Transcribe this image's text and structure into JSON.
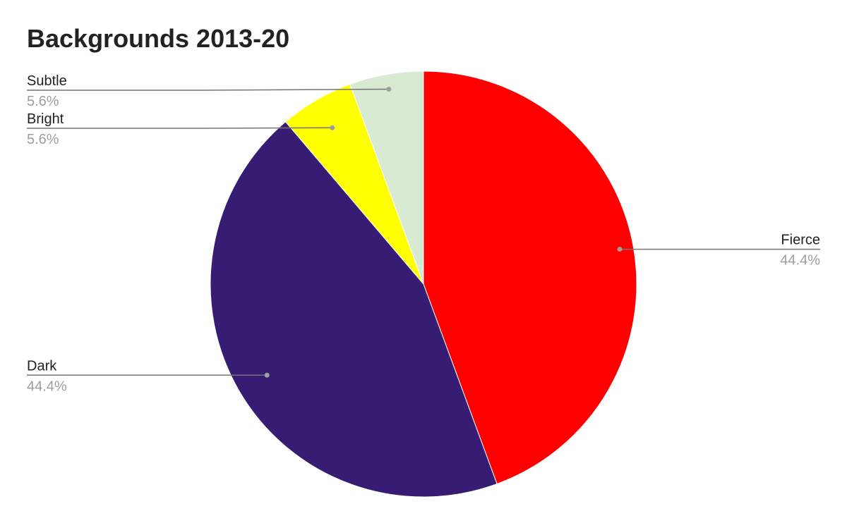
{
  "chart_data": {
    "type": "pie",
    "title": "Backgrounds 2013-20",
    "slices": [
      {
        "label": "Fierce",
        "value": 44.4,
        "percent_label": "44.4%",
        "color": "#ff0000"
      },
      {
        "label": "Dark",
        "value": 44.4,
        "percent_label": "44.4%",
        "color": "#361c73"
      },
      {
        "label": "Bright",
        "value": 5.6,
        "percent_label": "5.6%",
        "color": "#ffff00"
      },
      {
        "label": "Subtle",
        "value": 5.6,
        "percent_label": "5.6%",
        "color": "#d9ead3"
      }
    ],
    "start_angle": "12 o'clock",
    "direction": "clockwise",
    "legend": "none",
    "label_style": "callout lines with name and percent"
  }
}
